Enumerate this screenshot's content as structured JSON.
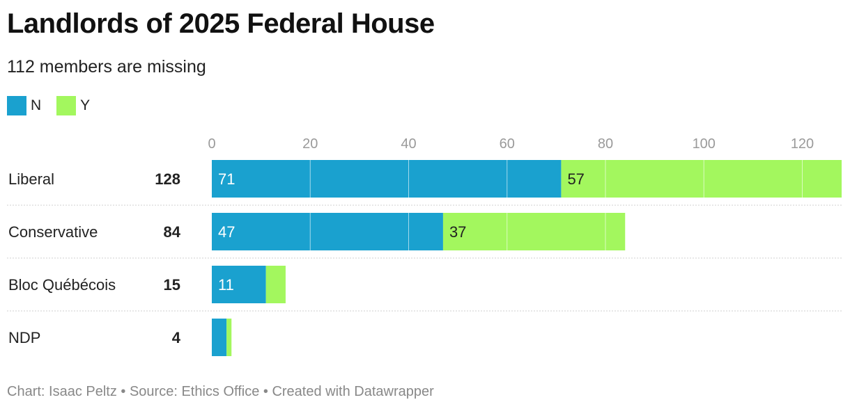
{
  "chart_data": {
    "type": "bar",
    "orientation": "horizontal",
    "stacked": true,
    "title": "Landlords of 2025 Federal House",
    "subtitle": "112 members are missing",
    "categories": [
      "Liberal",
      "Conservative",
      "Bloc Québécois",
      "NDP"
    ],
    "totals": [
      "128",
      "84",
      "15",
      "4"
    ],
    "series": [
      {
        "name": "N",
        "color": "#1aa1cf",
        "values": [
          71,
          47,
          11,
          3
        ]
      },
      {
        "name": "Y",
        "color": "#a3f75e",
        "values": [
          57,
          37,
          4,
          1
        ]
      }
    ],
    "value_labels": {
      "N": [
        "71",
        "47",
        "11",
        ""
      ],
      "Y": [
        "57",
        "37",
        "",
        ""
      ]
    },
    "x_ticks": [
      0,
      20,
      40,
      60,
      80,
      100,
      120
    ],
    "xlim": [
      0,
      128
    ],
    "grid": true,
    "legend_position": "top-left",
    "xlabel": "",
    "ylabel": ""
  },
  "footer": "Chart: Isaac Peltz • Source: Ethics Office • Created with Datawrapper"
}
